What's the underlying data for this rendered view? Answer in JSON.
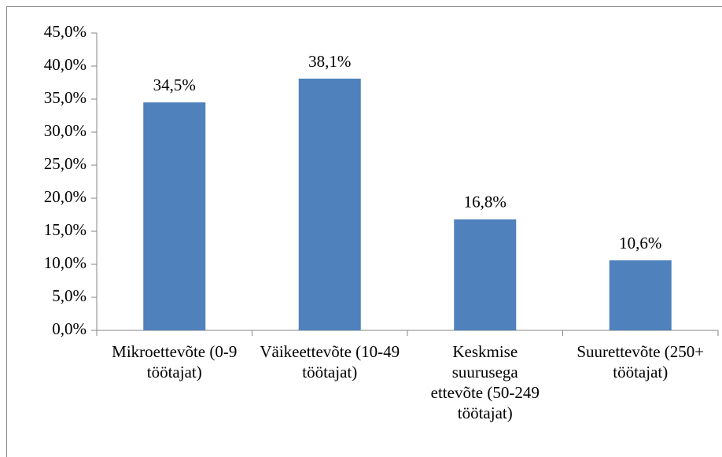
{
  "chart_data": {
    "type": "bar",
    "categories": [
      "Mikroettevõte (0-9 töötajat)",
      "Väikeettevõte (10-49 töötajat)",
      "Keskmise suurusega ettevõte (50-249 töötajat)",
      "Suurettevõte (250+ töötajat)"
    ],
    "values": [
      34.5,
      38.1,
      16.8,
      10.6
    ],
    "value_labels": [
      "34,5%",
      "38,1%",
      "16,8%",
      "10,6%"
    ],
    "color": "#4f81bd",
    "ylim": [
      0,
      45
    ],
    "yticks": [
      {
        "value": 0,
        "label": "0,0%"
      },
      {
        "value": 5,
        "label": "5,0%"
      },
      {
        "value": 10,
        "label": "10,0%"
      },
      {
        "value": 15,
        "label": "15,0%"
      },
      {
        "value": 20,
        "label": "20,0%"
      },
      {
        "value": 25,
        "label": "25,0%"
      },
      {
        "value": 30,
        "label": "30,0%"
      },
      {
        "value": 35,
        "label": "35,0%"
      },
      {
        "value": 40,
        "label": "40,0%"
      },
      {
        "value": 45,
        "label": "45,0%"
      }
    ],
    "grid": false
  }
}
